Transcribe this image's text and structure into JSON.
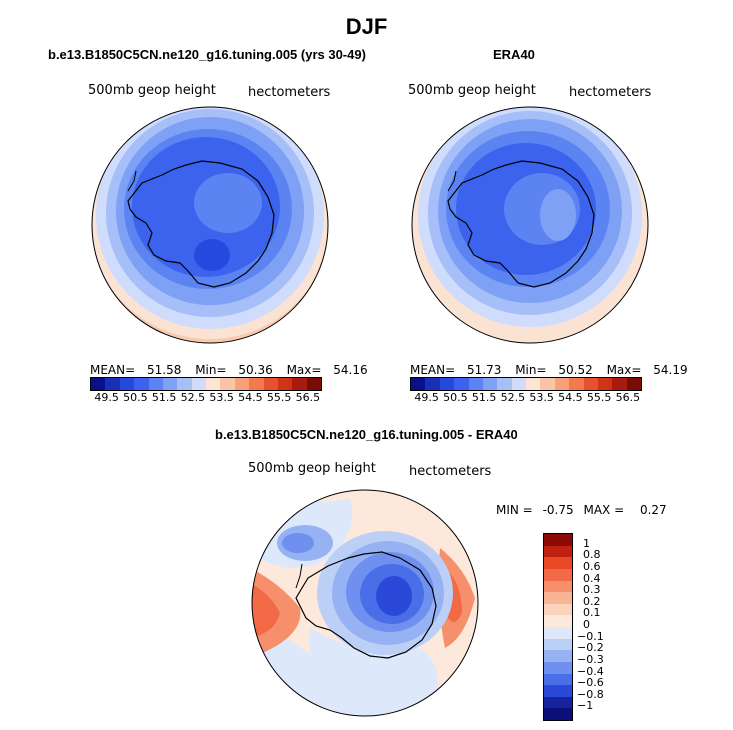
{
  "season_title": "DJF",
  "panel_left": {
    "title": "b.e13.B1850C5CN.ne120_g16.tuning.005 (yrs 30-49)",
    "variable": "500mb geop height",
    "units": "hectometers",
    "stats": {
      "mean_label": "MEAN=",
      "mean": "51.58",
      "min_label": "Min=",
      "min": "50.36",
      "max_label": "Max=",
      "max": "54.16"
    }
  },
  "panel_right": {
    "title": "ERA40",
    "variable": "500mb geop height",
    "units": "hectometers",
    "stats": {
      "mean_label": "MEAN=",
      "mean": "51.73",
      "min_label": "Min=",
      "min": "50.52",
      "max_label": "Max=",
      "max": "54.19"
    }
  },
  "abs_colorbar": {
    "labels": [
      "49.5",
      "50.5",
      "51.5",
      "52.5",
      "53.5",
      "54.5",
      "55.5",
      "56.5"
    ],
    "colors": [
      "#0a0f8c",
      "#1a2fb8",
      "#2449dc",
      "#3b63ee",
      "#5b83f2",
      "#7ea0f5",
      "#a6bff8",
      "#cfdcfb",
      "#fde4d4",
      "#fbc4a8",
      "#f7a079",
      "#f1784f",
      "#e9502f",
      "#d23318",
      "#ab1a0c",
      "#7a0a05"
    ]
  },
  "panel_diff": {
    "title": "b.e13.B1850C5CN.ne120_g16.tuning.005 - ERA40",
    "variable": "500mb geop height",
    "units": "hectometers",
    "stats": {
      "min_label": "MIN =",
      "min": "-0.75",
      "max_label": "MAX =",
      "max": "0.27"
    }
  },
  "diff_colorbar": {
    "labels": [
      "1",
      "0.8",
      "0.6",
      "0.4",
      "0.3",
      "0.2",
      "0.1",
      "0",
      "−0.1",
      "−0.2",
      "−0.3",
      "−0.4",
      "−0.6",
      "−0.8",
      "−1"
    ],
    "colors": [
      "#8b0a05",
      "#c0200f",
      "#e84826",
      "#f26a45",
      "#f6906c",
      "#f9b496",
      "#fbd3bd",
      "#fde9dc",
      "#dde8fb",
      "#bcd0f7",
      "#96b2f2",
      "#6f90ee",
      "#4a6de8",
      "#2a49d8",
      "#15239e",
      "#0a0f7a"
    ]
  },
  "chart_data": [
    {
      "type": "heatmap",
      "title": "b.e13.B1850C5CN.ne120_g16.tuning.005 (yrs 30-49)",
      "field": "500mb geop height",
      "units": "hectometers",
      "projection": "south polar stereographic",
      "mean": 51.58,
      "min": 50.36,
      "max": 54.16,
      "levels": [
        49.5,
        50.5,
        51.5,
        52.5,
        53.5,
        54.5,
        55.5,
        56.5
      ]
    },
    {
      "type": "heatmap",
      "title": "ERA40",
      "field": "500mb geop height",
      "units": "hectometers",
      "projection": "south polar stereographic",
      "mean": 51.73,
      "min": 50.52,
      "max": 54.19,
      "levels": [
        49.5,
        50.5,
        51.5,
        52.5,
        53.5,
        54.5,
        55.5,
        56.5
      ]
    },
    {
      "type": "heatmap",
      "title": "b.e13.B1850C5CN.ne120_g16.tuning.005 - ERA40",
      "field": "500mb geop height",
      "units": "hectometers",
      "projection": "south polar stereographic",
      "min": -0.75,
      "max": 0.27,
      "levels": [
        -1,
        -0.8,
        -0.6,
        -0.4,
        -0.3,
        -0.2,
        -0.1,
        0,
        0.1,
        0.2,
        0.3,
        0.4,
        0.6,
        0.8,
        1
      ]
    }
  ]
}
